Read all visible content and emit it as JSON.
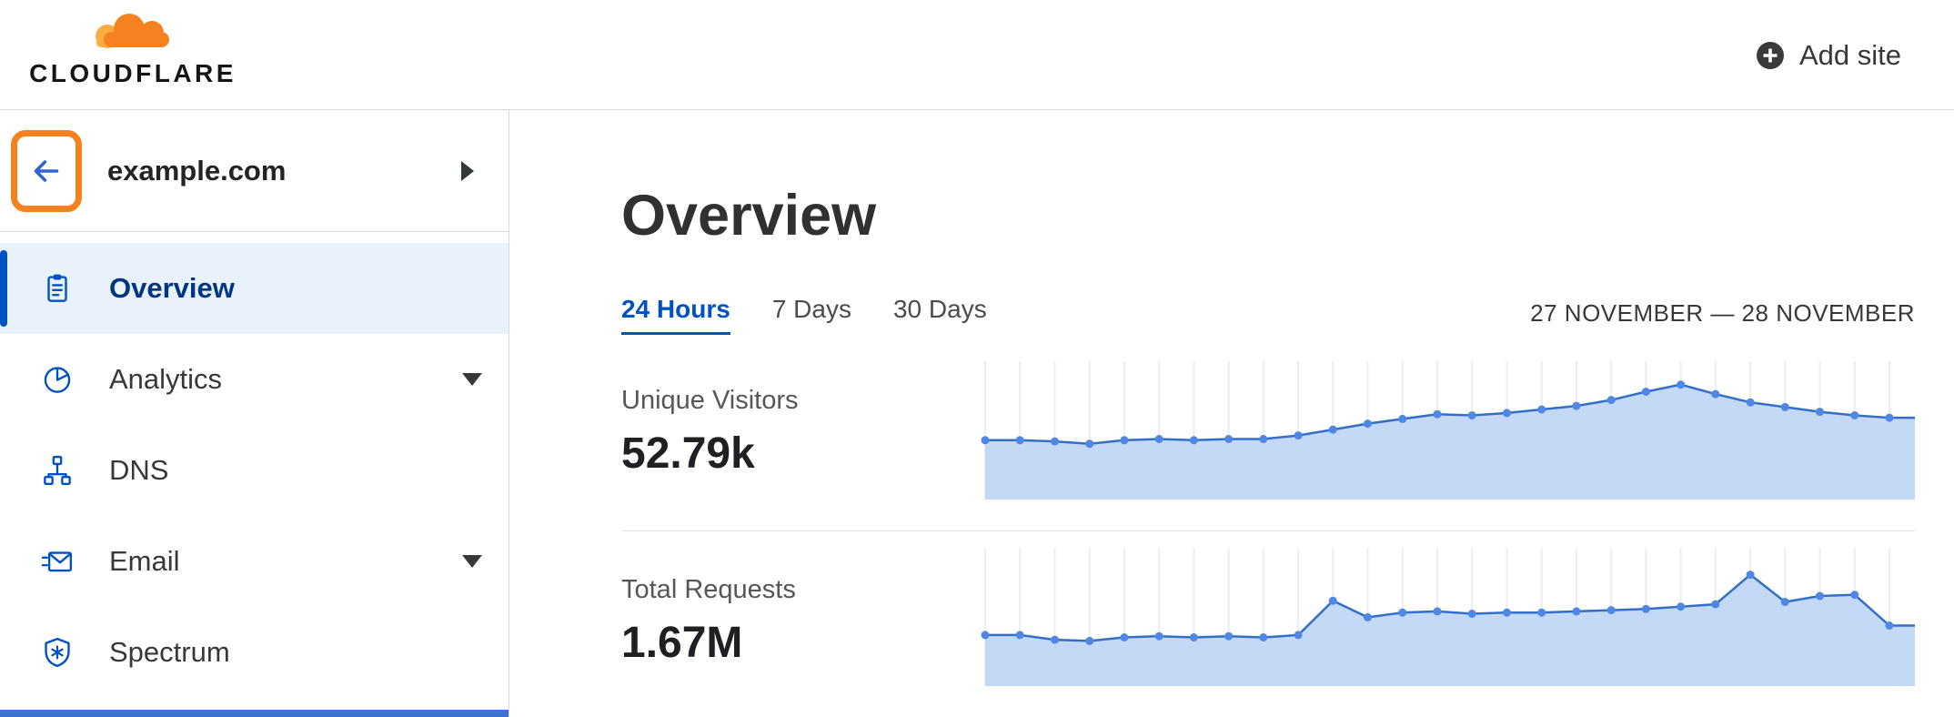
{
  "header": {
    "logo_text": "CLOUDFLARE",
    "add_site_label": "Add site"
  },
  "sidebar": {
    "site_name": "example.com",
    "items": [
      {
        "label": "Overview",
        "icon": "clipboard-icon",
        "active": true,
        "caret": false
      },
      {
        "label": "Analytics",
        "icon": "pie-chart-icon",
        "active": false,
        "caret": true
      },
      {
        "label": "DNS",
        "icon": "network-tree-icon",
        "active": false,
        "caret": false
      },
      {
        "label": "Email",
        "icon": "envelope-icon",
        "active": false,
        "caret": true
      },
      {
        "label": "Spectrum",
        "icon": "shield-icon",
        "active": false,
        "caret": false
      }
    ]
  },
  "main": {
    "title": "Overview",
    "tabs": [
      {
        "label": "24 Hours",
        "active": true
      },
      {
        "label": "7 Days",
        "active": false
      },
      {
        "label": "30 Days",
        "active": false
      }
    ],
    "date_range": "27 NOVEMBER — 28 NOVEMBER",
    "metrics": [
      {
        "label": "Unique Visitors",
        "value": "52.79k"
      },
      {
        "label": "Total Requests",
        "value": "1.67M"
      }
    ]
  },
  "chart_data": [
    {
      "type": "area",
      "title": "Unique Visitors — 24 Hours sparkline",
      "values": [
        44,
        44,
        43,
        41,
        44,
        45,
        44,
        45,
        45,
        48,
        53,
        58,
        62,
        66,
        65,
        67,
        70,
        73,
        78,
        85,
        91,
        83,
        76,
        72,
        68,
        65,
        63
      ],
      "ylim": [
        0,
        100
      ],
      "unit": "percent of chart height (visual estimate, no axis labels shown)",
      "grid": "vertical gridlines at each point",
      "legend": "none",
      "color": "#336fc7",
      "dot": "#4e87e4",
      "fill": "#c3d9f6"
    },
    {
      "type": "area",
      "title": "Total Requests — 24 Hours sparkline",
      "values": [
        37,
        37,
        33,
        32,
        35,
        36,
        35,
        36,
        35,
        37,
        66,
        52,
        56,
        57,
        55,
        56,
        56,
        57,
        58,
        59,
        61,
        63,
        88,
        65,
        70,
        71,
        45
      ],
      "ylim": [
        0,
        100
      ],
      "unit": "percent of chart height (visual estimate, no axis labels shown)",
      "grid": "vertical gridlines at each point",
      "legend": "none",
      "color": "#336fc7",
      "dot": "#4e87e4",
      "fill": "#c3d9f6"
    }
  ],
  "colors": {
    "brand_orange": "#f6821f",
    "brand_orange_light": "#fbad41",
    "link_blue": "#0051c3",
    "active_item_bg": "#e9f1fb",
    "active_item_text": "#003681",
    "chart_line": "#336fc7",
    "chart_dot": "#4e87e4",
    "chart_fill": "#c3d9f6",
    "gridline": "#ededed"
  }
}
